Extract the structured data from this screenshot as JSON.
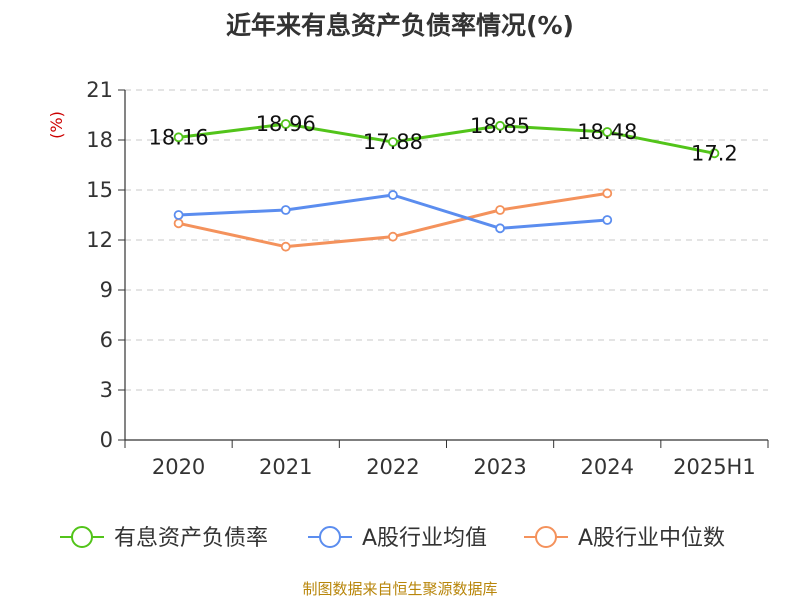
{
  "title": "近年来有息资产负债率情况(%)",
  "source": "制图数据来自恒生聚源数据库",
  "chart_data": {
    "type": "line",
    "title": "近年来有息资产负债率情况(%)",
    "ylabel": "(%)",
    "categories": [
      "2020",
      "2021",
      "2022",
      "2023",
      "2024",
      "2025H1"
    ],
    "ylim": [
      0,
      21
    ],
    "yticks": [
      0,
      3,
      6,
      9,
      12,
      15,
      18,
      21
    ],
    "grid": true,
    "legend_position": "bottom",
    "series": [
      {
        "name": "有息资产负债率",
        "color": "#52c41a",
        "values": [
          18.16,
          18.96,
          17.88,
          18.85,
          18.48,
          17.2
        ],
        "labels": [
          "18.16",
          "18.96",
          "17.88",
          "18.85",
          "18.48",
          "17.2"
        ]
      },
      {
        "name": "A股行业均值",
        "color": "#5b8def",
        "values": [
          13.5,
          13.8,
          14.7,
          12.7,
          13.2,
          null
        ]
      },
      {
        "name": "A股行业中位数",
        "color": "#f4925c",
        "values": [
          13.0,
          11.6,
          12.2,
          13.8,
          14.8,
          null
        ]
      }
    ]
  }
}
